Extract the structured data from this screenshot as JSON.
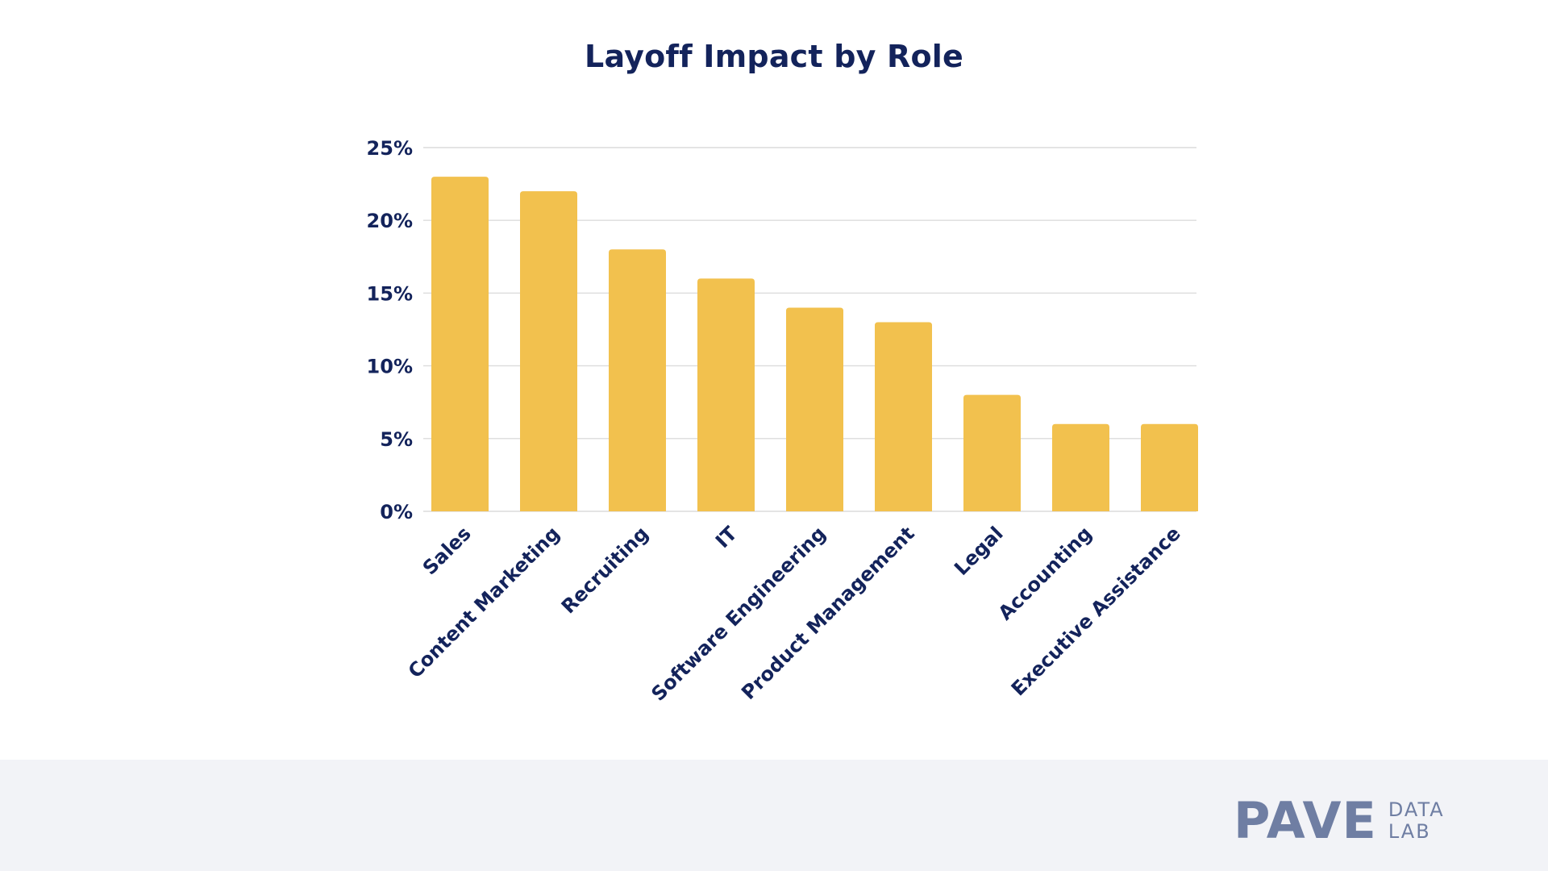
{
  "chart_data": {
    "type": "bar",
    "title": "Layoff Impact by Role",
    "xlabel": "",
    "ylabel": "",
    "categories": [
      "Sales",
      "Content Marketing",
      "Recruiting",
      "IT",
      "Software Engineering",
      "Product Management",
      "Legal",
      "Accounting",
      "Executive Assistance"
    ],
    "values": [
      23,
      22,
      18,
      16,
      14,
      13,
      8,
      6,
      6
    ],
    "ylim": [
      0,
      25
    ],
    "yticks": [
      0,
      5,
      10,
      15,
      20,
      25
    ],
    "ytick_labels": [
      "0%",
      "5%",
      "10%",
      "15%",
      "20%",
      "25%"
    ],
    "grid": true,
    "colors": {
      "bar": "#f2c14e",
      "text": "#13235b",
      "grid": "#dcdcdc"
    }
  },
  "footer": {
    "logo_word": "PAVE",
    "logo_sub_top": "DATA",
    "logo_sub_bottom": "LAB",
    "logo_color": "#6f7ea3",
    "background": "#f2f3f7"
  }
}
